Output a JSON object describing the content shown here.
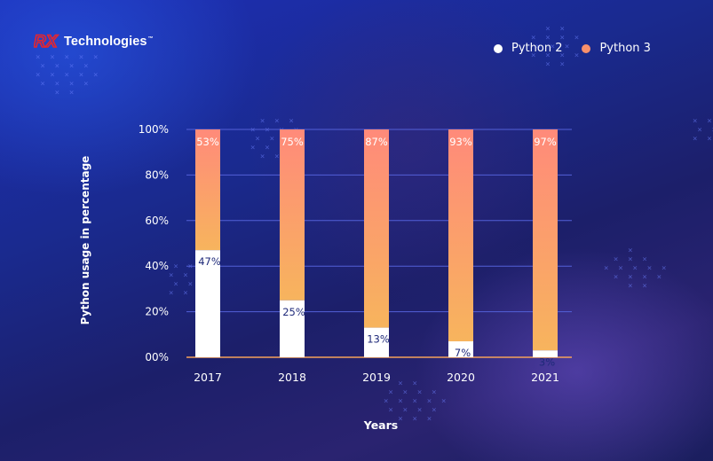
{
  "brand": {
    "logo_letters": "RX",
    "name": "Technologies",
    "trademark": "™"
  },
  "colors": {
    "python2": "#ffffff",
    "python3_top": "#ff8a7a",
    "python3_bottom": "#f7b45d",
    "grid": "#5360d8",
    "baseline": "#f5a25a"
  },
  "chart_data": {
    "type": "bar",
    "stacked": true,
    "categories": [
      "2017",
      "2018",
      "2019",
      "2020",
      "2021"
    ],
    "series": [
      {
        "name": "Python 2",
        "values": [
          47,
          25,
          13,
          7,
          3
        ],
        "labels": [
          "47%",
          "25%",
          "13%",
          "7%",
          "3%"
        ]
      },
      {
        "name": "Python 3",
        "values": [
          53,
          75,
          87,
          93,
          97
        ],
        "labels": [
          "53%",
          "75%",
          "87%",
          "93%",
          "97%"
        ]
      }
    ],
    "xlabel": "Years",
    "ylabel": "Python usage in percentage",
    "ylim": [
      0,
      100
    ],
    "yticks": [
      "00%",
      "20%",
      "40%",
      "60%",
      "80%",
      "100%"
    ],
    "grid": true,
    "legend_position": "top-right"
  }
}
